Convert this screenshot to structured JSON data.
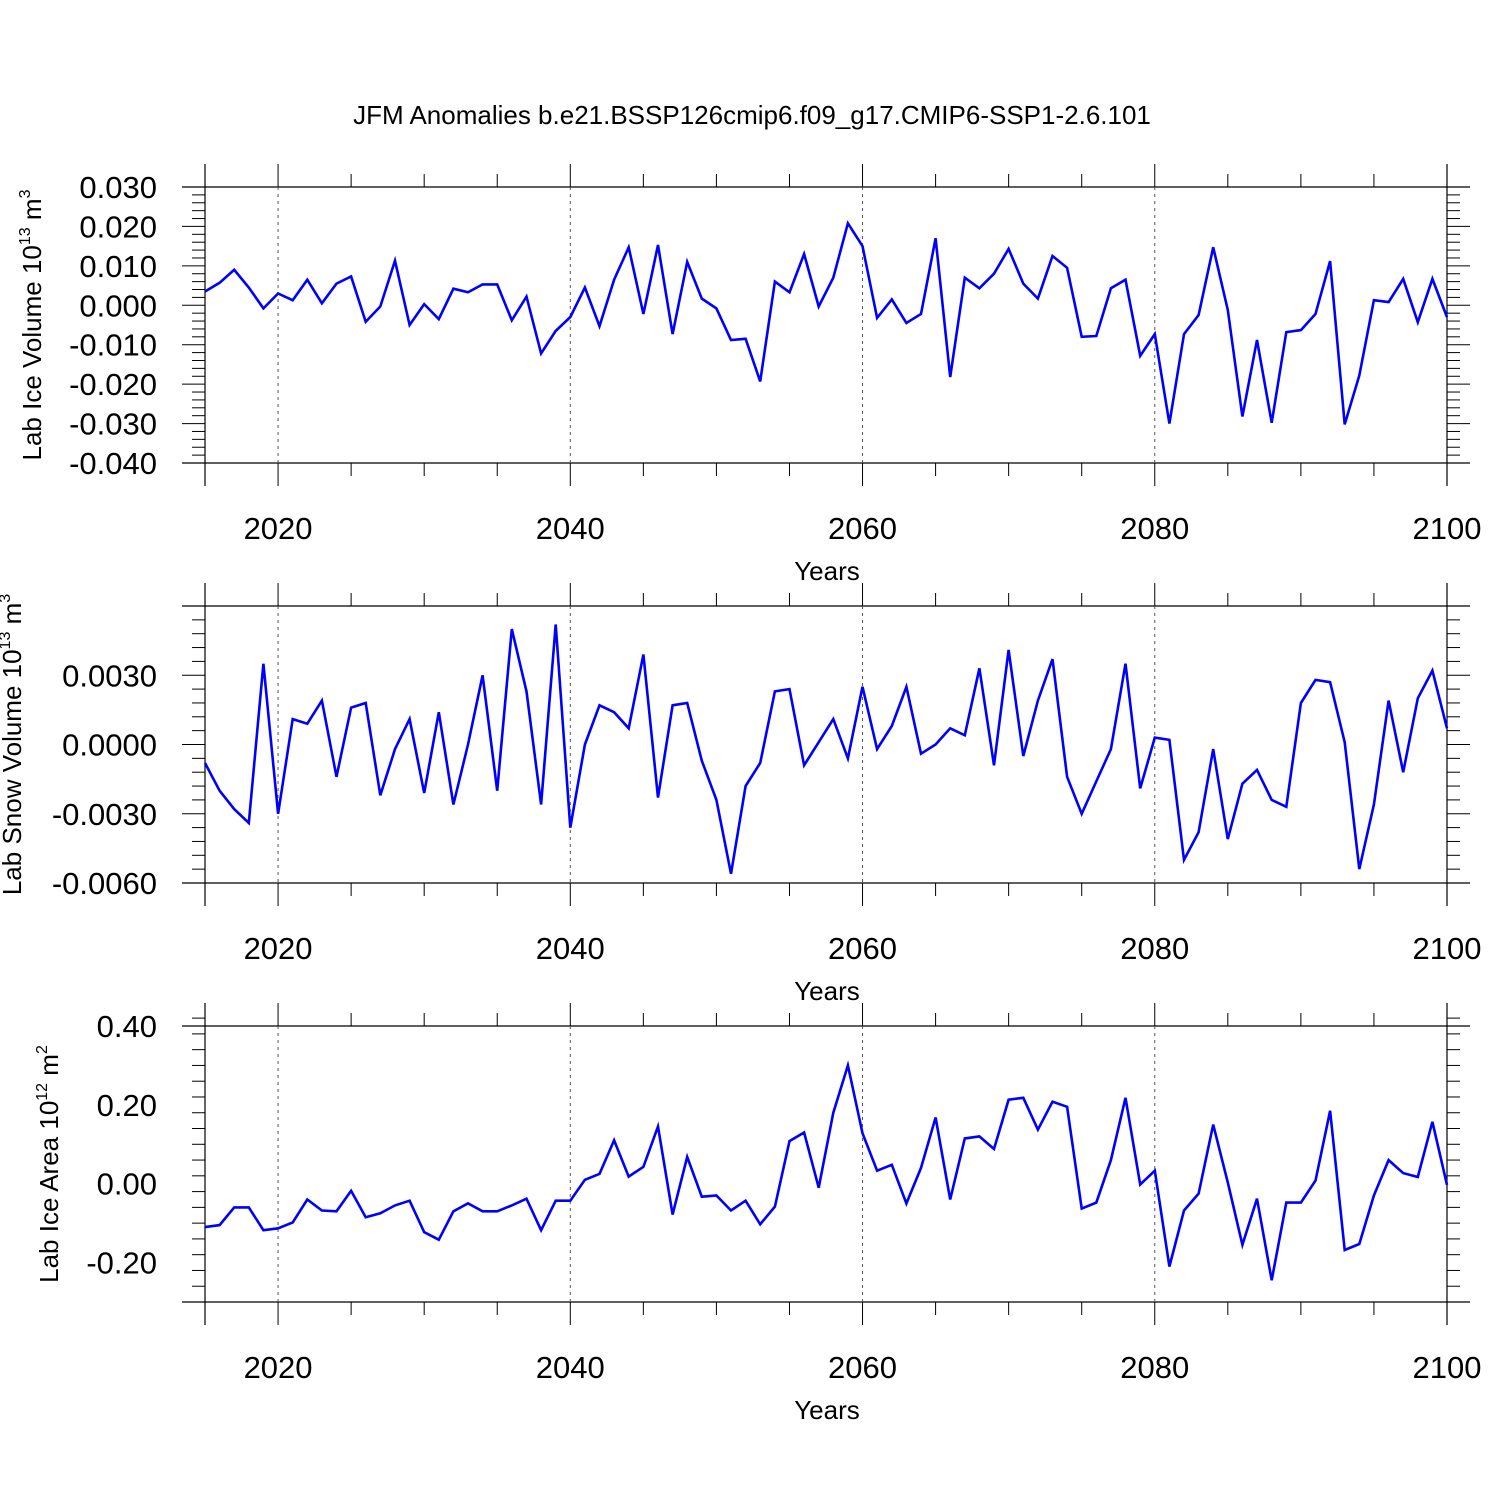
{
  "figure": {
    "title": "JFM Anomalies b.e21.BSSP126cmip6.f09_g17.CMIP6-SSP1-2.6.101"
  },
  "chart_data": [
    {
      "type": "line",
      "title": "JFM Anomalies b.e21.BSSP126cmip6.f09_g17.CMIP6-SSP1-2.6.101",
      "ylabel": "Lab Ice Volume 10",
      "ylabel_exp": "13",
      "ylabel_unit": " m",
      "ylabel_unit_exp": "3",
      "xlabel": "Years",
      "xlim": [
        2015,
        2100
      ],
      "ylim": [
        -0.04,
        0.03
      ],
      "yticks": [
        0.03,
        0.02,
        0.01,
        0.0,
        -0.01,
        -0.02,
        -0.03,
        -0.04
      ],
      "ytick_labels": [
        "0.030",
        "0.020",
        "0.010",
        "0.000",
        "-0.010",
        "-0.020",
        "-0.030",
        "-0.040"
      ],
      "xticks": [
        2020,
        2040,
        2060,
        2080,
        2100
      ],
      "xtick_labels": [
        "2020",
        "2040",
        "2060",
        "2080",
        "2100"
      ],
      "line_color": "#0000ff",
      "series": [
        {
          "name": "Lab Ice Volume",
          "x": [
            2015,
            2016,
            2017,
            2018,
            2019,
            2020,
            2021,
            2022,
            2023,
            2024,
            2025,
            2026,
            2027,
            2028,
            2029,
            2030,
            2031,
            2032,
            2033,
            2034,
            2035,
            2036,
            2037,
            2038,
            2039,
            2040,
            2041,
            2042,
            2043,
            2044,
            2045,
            2046,
            2047,
            2048,
            2049,
            2050,
            2051,
            2052,
            2053,
            2054,
            2055,
            2056,
            2057,
            2058,
            2059,
            2060,
            2061,
            2062,
            2063,
            2064,
            2065,
            2066,
            2067,
            2068,
            2069,
            2070,
            2071,
            2072,
            2073,
            2074,
            2075,
            2076,
            2077,
            2078,
            2079,
            2080,
            2081,
            2082,
            2083,
            2084,
            2085,
            2086,
            2087,
            2088,
            2089,
            2090,
            2091,
            2092,
            2093,
            2094,
            2095,
            2096,
            2097,
            2098,
            2099,
            2100
          ],
          "values": [
            0.0035,
            0.0057,
            0.009,
            0.0045,
            -0.0008,
            0.003,
            0.0013,
            0.0065,
            0.0005,
            0.0055,
            0.0073,
            -0.0042,
            -0.0003,
            0.0113,
            -0.005,
            0.0003,
            -0.0035,
            0.0042,
            0.0033,
            0.0053,
            0.0053,
            -0.0038,
            0.0022,
            -0.0122,
            -0.0065,
            -0.003,
            0.0045,
            -0.0053,
            0.0065,
            0.0147,
            -0.0022,
            0.0153,
            -0.0073,
            0.011,
            0.0017,
            -0.0008,
            -0.0088,
            -0.0085,
            -0.0193,
            0.006,
            0.0033,
            0.013,
            -0.0003,
            0.007,
            0.0208,
            0.015,
            -0.0032,
            0.0015,
            -0.0045,
            -0.0022,
            0.017,
            -0.0182,
            0.007,
            0.0043,
            0.008,
            0.0143,
            0.0055,
            0.0017,
            0.0125,
            0.0095,
            -0.008,
            -0.0078,
            0.0043,
            0.0065,
            -0.0128,
            -0.0073,
            -0.03,
            -0.0073,
            -0.0025,
            0.0147,
            -0.0012,
            -0.0282,
            -0.0088,
            -0.0298,
            -0.0068,
            -0.0063,
            -0.0022,
            0.0112,
            -0.0302,
            -0.0178,
            0.0013,
            0.0008,
            0.0067,
            -0.0043,
            0.0067,
            -0.003
          ]
        }
      ]
    },
    {
      "type": "line",
      "ylabel": "Lab Snow Volume 10",
      "ylabel_exp": "13",
      "ylabel_unit": " m",
      "ylabel_unit_exp": "3",
      "xlabel": "Years",
      "xlim": [
        2015,
        2100
      ],
      "ylim": [
        -0.006,
        0.006
      ],
      "yticks": [
        0.003,
        0.0,
        -0.003,
        -0.006
      ],
      "ytick_labels": [
        "0.0030",
        "0.0000",
        "-0.0030",
        "-0.0060"
      ],
      "xticks": [
        2020,
        2040,
        2060,
        2080,
        2100
      ],
      "xtick_labels": [
        "2020",
        "2040",
        "2060",
        "2080",
        "2100"
      ],
      "line_color": "#0000ff",
      "series": [
        {
          "name": "Lab Snow Volume",
          "x": [
            2015,
            2016,
            2017,
            2018,
            2019,
            2020,
            2021,
            2022,
            2023,
            2024,
            2025,
            2026,
            2027,
            2028,
            2029,
            2030,
            2031,
            2032,
            2033,
            2034,
            2035,
            2036,
            2037,
            2038,
            2039,
            2040,
            2041,
            2042,
            2043,
            2044,
            2045,
            2046,
            2047,
            2048,
            2049,
            2050,
            2051,
            2052,
            2053,
            2054,
            2055,
            2056,
            2057,
            2058,
            2059,
            2060,
            2061,
            2062,
            2063,
            2064,
            2065,
            2066,
            2067,
            2068,
            2069,
            2070,
            2071,
            2072,
            2073,
            2074,
            2075,
            2076,
            2077,
            2078,
            2079,
            2080,
            2081,
            2082,
            2083,
            2084,
            2085,
            2086,
            2087,
            2088,
            2089,
            2090,
            2091,
            2092,
            2093,
            2094,
            2095,
            2096,
            2097,
            2098,
            2099,
            2100
          ],
          "values": [
            -0.0008,
            -0.002,
            -0.0028,
            -0.0034,
            0.0035,
            -0.003,
            0.0011,
            0.0009,
            0.0019,
            -0.0014,
            0.0016,
            0.0018,
            -0.0022,
            -0.0002,
            0.0011,
            -0.0021,
            0.0014,
            -0.0026,
            0.0,
            0.003,
            -0.002,
            0.005,
            0.0023,
            -0.0026,
            0.0052,
            -0.0036,
            0.0,
            0.0017,
            0.0014,
            0.0007,
            0.0039,
            -0.0023,
            0.0017,
            0.0018,
            -0.0007,
            -0.0024,
            -0.0056,
            -0.0018,
            -0.0008,
            0.0023,
            0.0024,
            -0.0009,
            0.0001,
            0.0011,
            -0.0006,
            0.0025,
            -0.0002,
            0.0008,
            0.0025,
            -0.0004,
            0.0,
            0.0007,
            0.0004,
            0.0033,
            -0.0009,
            0.0041,
            -0.0005,
            0.0019,
            0.0037,
            -0.0014,
            -0.003,
            -0.0016,
            -0.0002,
            0.0035,
            -0.0019,
            0.0003,
            0.0002,
            -0.005,
            -0.0038,
            -0.0002,
            -0.0041,
            -0.0017,
            -0.0011,
            -0.0024,
            -0.0027,
            0.0018,
            0.0028,
            0.0027,
            0.0001,
            -0.0054,
            -0.0026,
            0.0019,
            -0.0012,
            0.002,
            0.0032,
            0.0007
          ]
        }
      ]
    },
    {
      "type": "line",
      "ylabel": "Lab Ice Area 10",
      "ylabel_exp": "12",
      "ylabel_unit": " m",
      "ylabel_unit_exp": "2",
      "xlabel": "Years",
      "xlim": [
        2015,
        2100
      ],
      "ylim": [
        -0.3,
        0.4
      ],
      "yticks": [
        0.4,
        0.2,
        0.0,
        -0.2
      ],
      "ytick_labels": [
        "0.40",
        "0.20",
        "0.00",
        "-0.20"
      ],
      "xticks": [
        2020,
        2040,
        2060,
        2080,
        2100
      ],
      "xtick_labels": [
        "2020",
        "2040",
        "2060",
        "2080",
        "2100"
      ],
      "line_color": "#0000ff",
      "series": [
        {
          "name": "Lab Ice Area",
          "x": [
            2015,
            2016,
            2017,
            2018,
            2019,
            2020,
            2021,
            2022,
            2023,
            2024,
            2025,
            2026,
            2027,
            2028,
            2029,
            2030,
            2031,
            2032,
            2033,
            2034,
            2035,
            2036,
            2037,
            2038,
            2039,
            2040,
            2041,
            2042,
            2043,
            2044,
            2045,
            2046,
            2047,
            2048,
            2049,
            2050,
            2051,
            2052,
            2053,
            2054,
            2055,
            2056,
            2057,
            2058,
            2059,
            2060,
            2061,
            2062,
            2063,
            2064,
            2065,
            2066,
            2067,
            2068,
            2069,
            2070,
            2071,
            2072,
            2073,
            2074,
            2075,
            2076,
            2077,
            2078,
            2079,
            2080,
            2081,
            2082,
            2083,
            2084,
            2085,
            2086,
            2087,
            2088,
            2089,
            2090,
            2091,
            2092,
            2093,
            2094,
            2095,
            2096,
            2097,
            2098,
            2099,
            2100
          ],
          "values": [
            -0.11,
            -0.105,
            -0.06,
            -0.06,
            -0.118,
            -0.113,
            -0.098,
            -0.04,
            -0.068,
            -0.07,
            -0.018,
            -0.085,
            -0.075,
            -0.055,
            -0.043,
            -0.123,
            -0.142,
            -0.07,
            -0.05,
            -0.07,
            -0.07,
            -0.055,
            -0.038,
            -0.118,
            -0.043,
            -0.043,
            0.01,
            0.025,
            0.11,
            0.018,
            0.043,
            0.145,
            -0.078,
            0.068,
            -0.033,
            -0.03,
            -0.068,
            -0.043,
            -0.103,
            -0.058,
            0.108,
            0.13,
            -0.01,
            0.18,
            0.3,
            0.128,
            0.033,
            0.048,
            -0.05,
            0.04,
            0.168,
            -0.04,
            0.115,
            0.12,
            0.088,
            0.213,
            0.218,
            0.137,
            0.208,
            0.195,
            -0.063,
            -0.048,
            0.06,
            0.218,
            -0.002,
            0.033,
            -0.21,
            -0.068,
            -0.025,
            0.15,
            0.003,
            -0.155,
            -0.038,
            -0.245,
            -0.048,
            -0.048,
            0.008,
            0.185,
            -0.168,
            -0.153,
            -0.03,
            0.06,
            0.027,
            0.017,
            0.157,
            -0.003
          ]
        }
      ]
    }
  ]
}
